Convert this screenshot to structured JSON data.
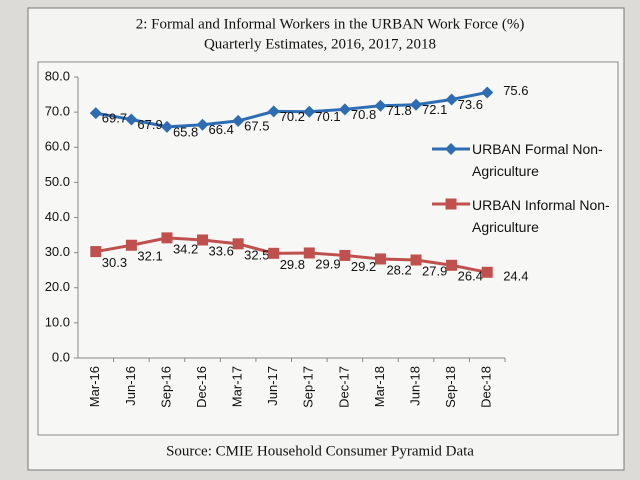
{
  "chart_data": {
    "type": "line",
    "title": "2: Formal and Informal Workers in the URBAN Work Force (%)",
    "subtitle": "Quarterly Estimates, 2016, 2017, 2018",
    "source": "Source: CMIE Household Consumer Pyramid Data",
    "categories": [
      "Mar-16",
      "Jun-16",
      "Sep-16",
      "Dec-16",
      "Mar-17",
      "Jun-17",
      "Sep-17",
      "Dec-17",
      "Mar-18",
      "Jun-18",
      "Sep-18",
      "Dec-18"
    ],
    "series": [
      {
        "name": "URBAN Formal Non-Agriculture",
        "color": "#2e6db4",
        "marker": "diamond",
        "values": [
          69.7,
          67.9,
          65.8,
          66.4,
          67.5,
          70.2,
          70.1,
          70.8,
          71.8,
          72.1,
          73.6,
          75.6
        ]
      },
      {
        "name": "URBAN Informal Non-Agriculture",
        "color": "#c0504d",
        "marker": "square",
        "values": [
          30.3,
          32.1,
          34.2,
          33.6,
          32.5,
          29.8,
          29.9,
          29.2,
          28.2,
          27.9,
          26.4,
          24.4
        ]
      }
    ],
    "ylim": [
      0,
      80
    ],
    "yticks": [
      {
        "value": 0,
        "label": "0.0"
      },
      {
        "value": 10,
        "label": "10.0"
      },
      {
        "value": 20,
        "label": "20.0"
      },
      {
        "value": 30,
        "label": "30.0"
      },
      {
        "value": 40,
        "label": "40.0"
      },
      {
        "value": 50,
        "label": "50.0"
      },
      {
        "value": 60,
        "label": "60.0"
      },
      {
        "value": 70,
        "label": "70.0"
      },
      {
        "value": 80,
        "label": "80.0"
      }
    ],
    "grid": false
  }
}
